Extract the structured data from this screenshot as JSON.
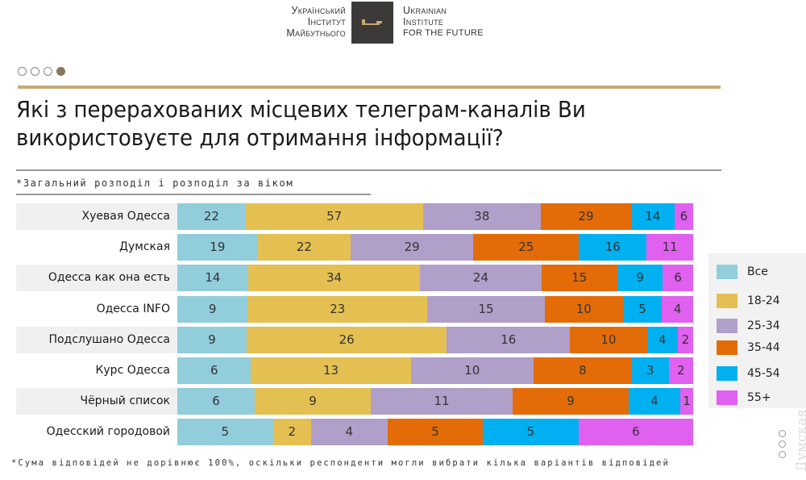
{
  "logo": {
    "ua_lines": [
      "Український",
      "Інститут",
      "Майбутнього"
    ],
    "en_lines": [
      "Ukrainian",
      "Institute",
      "for the Future"
    ],
    "icon": "key-icon"
  },
  "pagination": {
    "total": 4,
    "active": 4
  },
  "title": "Які з перерахованих місцевих телеграм-каналів Ви використовуєте для отримання інформації?",
  "subtitle": "*Загальний розподіл і розподіл за віком",
  "footnote": "*Сума відповідей не дорівнює 100%, оскільки респонденти могли вибрати кілька варіантів відповідей",
  "watermark": "Думская",
  "colors": {
    "Все": "#92cddc",
    "18-24": "#e4c052",
    "25-34": "#b09fc9",
    "35-44": "#e36c09",
    "45-54": "#00b0f0",
    "55+": "#e060ef",
    "accent_line": "#c8a875",
    "row_shade": "#f0f0f0"
  },
  "chart_data": {
    "type": "bar",
    "orientation": "horizontal",
    "stacked": true,
    "normalized_per_row": true,
    "title": "Які з перерахованих місцевих телеграм-каналів Ви використовуєте для отримання інформації?",
    "subtitle": "*Загальний розподіл і розподіл за віком",
    "xlabel": "",
    "ylabel": "",
    "legend_position": "right",
    "categories": [
      "Хуевая Одесса",
      "Думская",
      "Одесса как она есть",
      "Одесса INFO",
      "Подслушано Одесса",
      "Курс Одесса",
      "Чёрный список",
      "Одесский городовой"
    ],
    "series": [
      {
        "name": "Все",
        "values": [
          22,
          19,
          14,
          9,
          9,
          6,
          6,
          5
        ]
      },
      {
        "name": "18-24",
        "values": [
          57,
          22,
          34,
          23,
          26,
          13,
          9,
          2
        ]
      },
      {
        "name": "25-34",
        "values": [
          38,
          29,
          24,
          15,
          16,
          10,
          11,
          4
        ]
      },
      {
        "name": "35-44",
        "values": [
          29,
          25,
          15,
          10,
          10,
          8,
          9,
          5
        ]
      },
      {
        "name": "45-54",
        "values": [
          14,
          16,
          9,
          5,
          4,
          3,
          4,
          5
        ]
      },
      {
        "name": "55+",
        "values": [
          6,
          11,
          6,
          4,
          2,
          2,
          1,
          6
        ]
      }
    ]
  }
}
